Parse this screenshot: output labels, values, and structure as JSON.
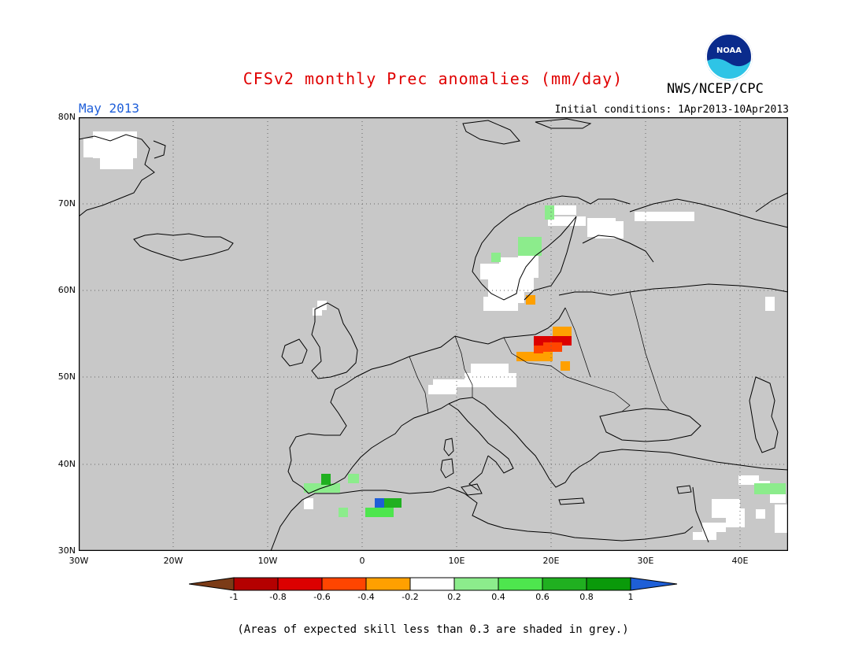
{
  "header": {
    "title": "CFSv2 monthly Prec anomalies (mm/day)",
    "month": "May 2013",
    "initial_conditions": "Initial conditions: 1Apr2013-10Apr2013",
    "agency": "NWS/NCEP/CPC",
    "logo_text": "NOAA"
  },
  "map": {
    "lat_labels": [
      "80N",
      "70N",
      "60N",
      "50N",
      "40N",
      "30N"
    ],
    "lon_labels": [
      "30W",
      "20W",
      "10W",
      "0",
      "10E",
      "20E",
      "30E",
      "40E"
    ],
    "background_color": "#c8c8c8"
  },
  "colorbar": {
    "labels": [
      "-1",
      "-0.8",
      "-0.6",
      "-0.4",
      "-0.2",
      "0.2",
      "0.4",
      "0.6",
      "0.8",
      "1"
    ],
    "colors": [
      "#7b3b17",
      "#b40000",
      "#dc0000",
      "#ff4500",
      "#ffa000",
      "#ffffff",
      "#8cec8c",
      "#4ee64e",
      "#20b020",
      "#0a9a0a",
      "#1e5fd7"
    ]
  },
  "footnote": "(Areas of expected skill less than 0.3 are shaded in grey.)"
}
